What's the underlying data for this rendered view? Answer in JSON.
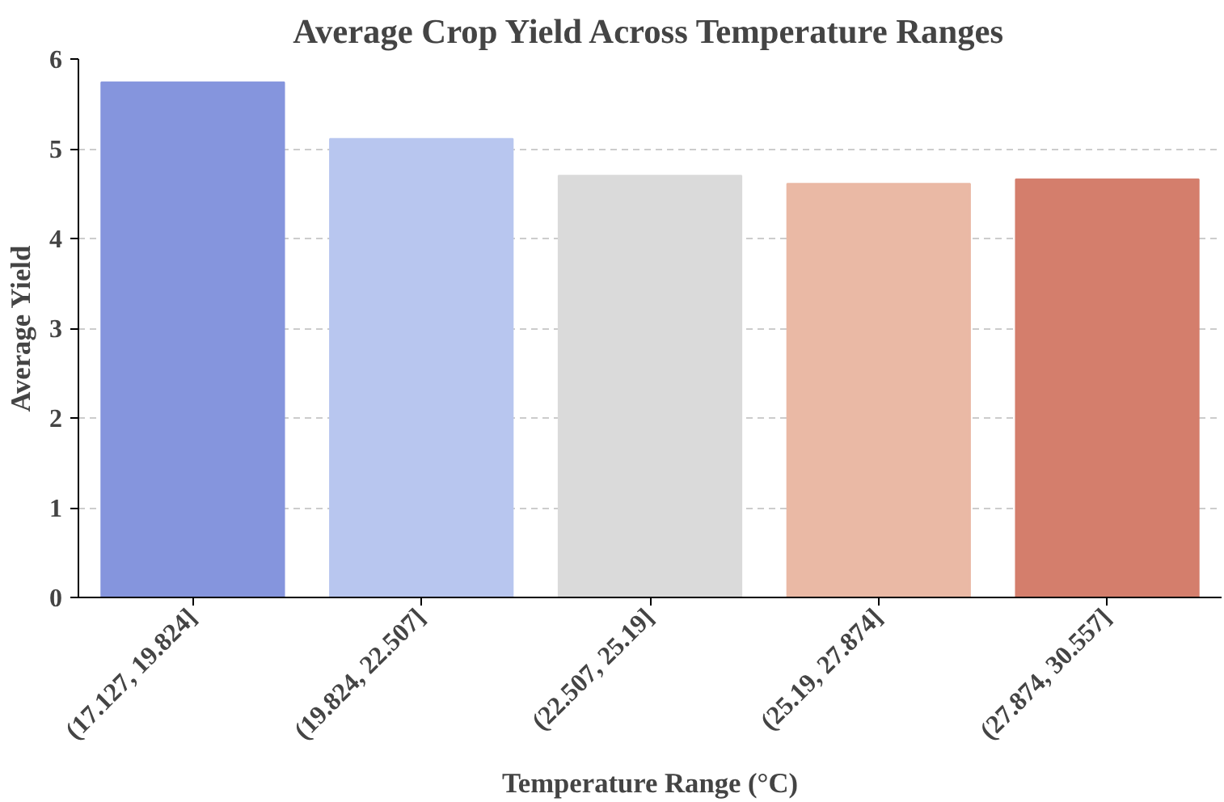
{
  "chart_data": {
    "type": "bar",
    "title": "Average Crop Yield Across Temperature Ranges",
    "xlabel": "Temperature Range (°C)",
    "ylabel": "Average Yield",
    "categories": [
      "(17.127, 19.824]",
      "(19.824, 22.507]",
      "(22.507, 25.19]",
      "(25.19, 27.874]",
      "(27.874, 30.557]"
    ],
    "values": [
      5.74,
      5.11,
      4.7,
      4.61,
      4.66
    ],
    "colors": [
      "#8595dd",
      "#b8c6ef",
      "#dadada",
      "#eab9a5",
      "#d47e6c"
    ],
    "ylim": [
      0,
      6
    ],
    "yticks": [
      0,
      1,
      2,
      3,
      4,
      5,
      6
    ],
    "grid": "y"
  }
}
